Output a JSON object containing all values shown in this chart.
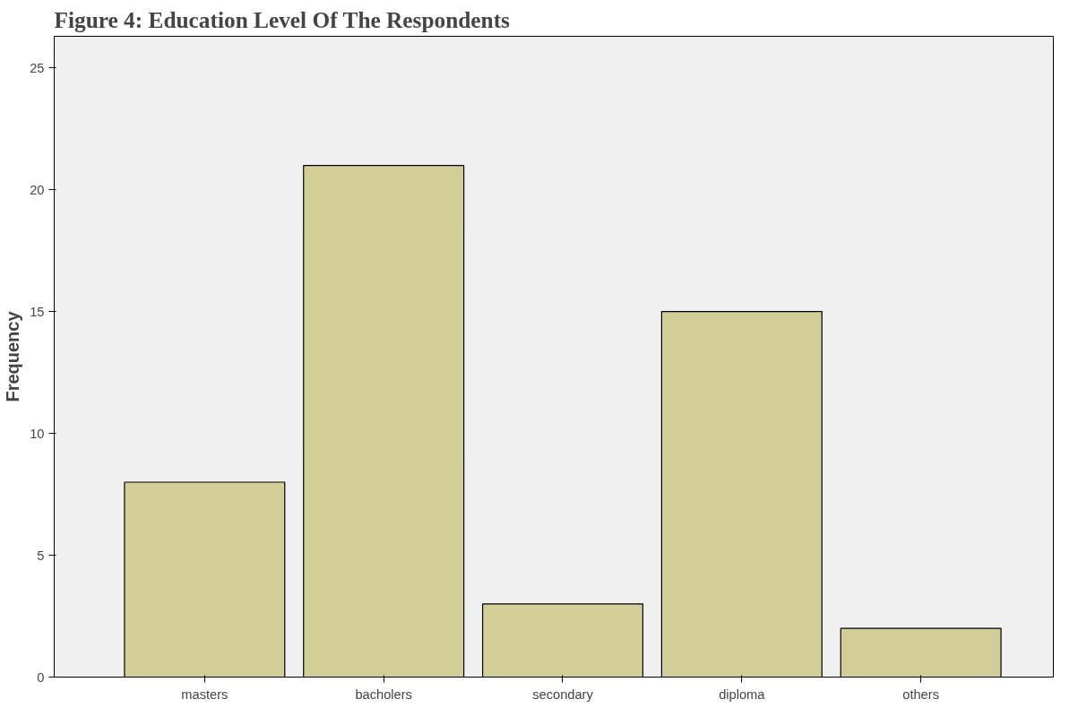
{
  "chart_data": {
    "type": "bar",
    "title": "Figure 4:   Education Level Of The Respondents",
    "ylabel": "Frequency",
    "categories": [
      "masters",
      "bacholers",
      "secondary",
      "diploma",
      "others"
    ],
    "values": [
      8,
      21,
      3,
      15,
      2
    ],
    "color": "#d3ce97",
    "ylim": [
      0,
      26.3
    ],
    "yticks": [
      0,
      5,
      10,
      15,
      20,
      25
    ],
    "grid": false
  }
}
